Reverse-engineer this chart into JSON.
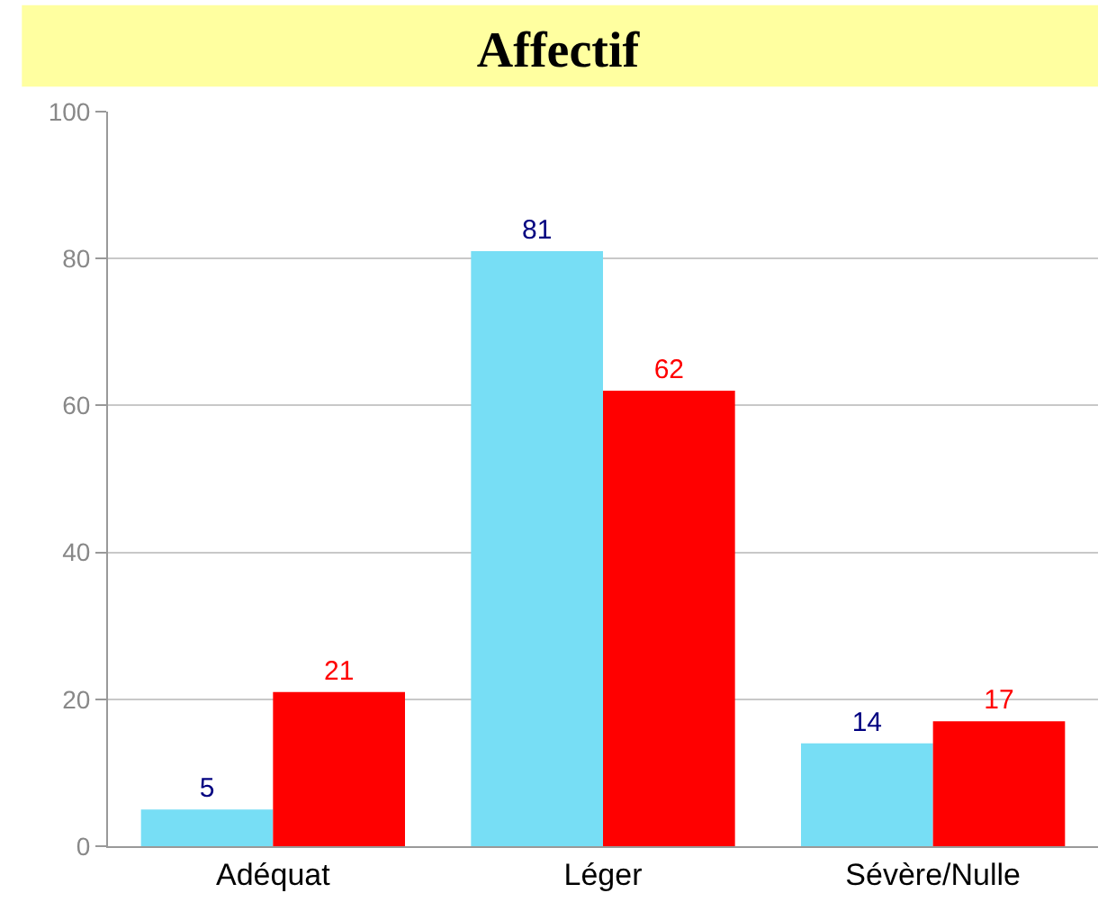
{
  "chart_data": {
    "type": "bar",
    "title": "Affectif",
    "categories": [
      "Adéquat",
      "Léger",
      "Sévère/Nulle"
    ],
    "series": [
      {
        "color": "#77def5",
        "values": [
          5,
          81,
          14
        ]
      },
      {
        "color": "#ff0000",
        "values": [
          21,
          62,
          17
        ]
      }
    ],
    "ylim": [
      0,
      100
    ],
    "yticks": [
      0,
      20,
      40,
      60,
      80,
      100
    ],
    "grid": "y",
    "data_labels": true,
    "legend": false
  }
}
